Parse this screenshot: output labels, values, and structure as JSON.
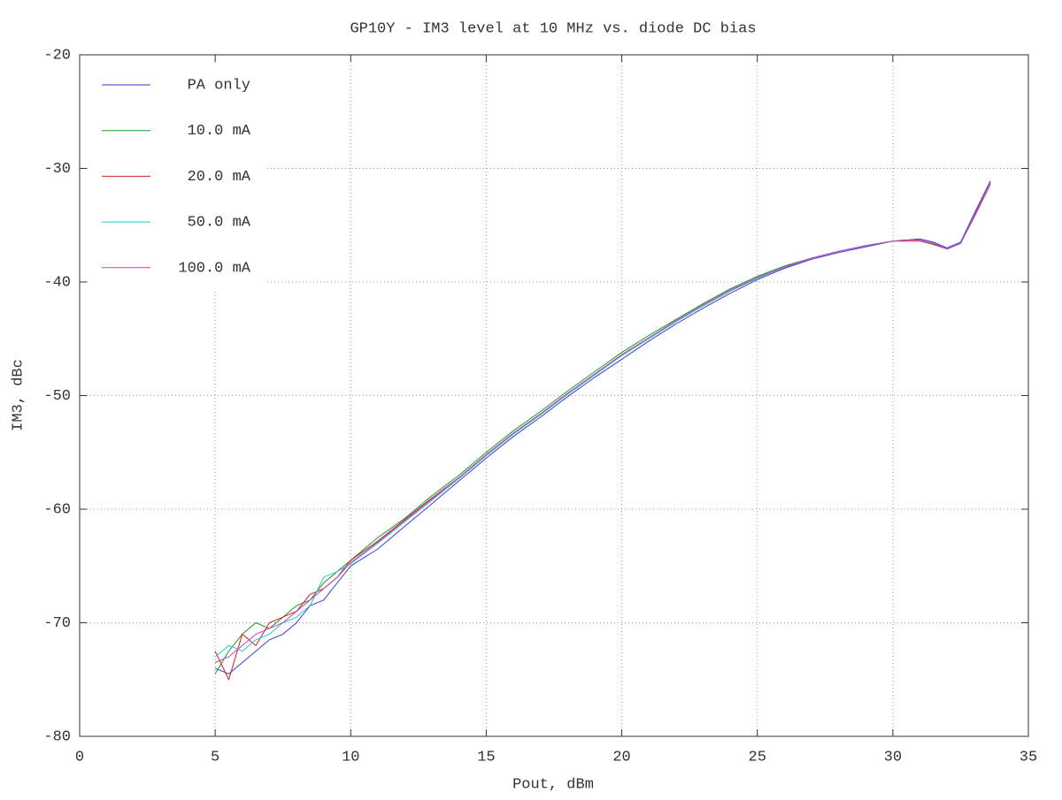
{
  "chart_data": {
    "type": "line",
    "title": "GP10Y - IM3 level at 10 MHz vs. diode DC bias",
    "x_label": "Pout, dBm",
    "y_label": "IM3, dBc",
    "xlim": [
      0,
      35
    ],
    "xticks": [
      0,
      5,
      10,
      15,
      20,
      25,
      30,
      35
    ],
    "ylim": [
      -80,
      -20
    ],
    "yticks": [
      -80,
      -70,
      -60,
      -50,
      -40,
      -30,
      -20
    ],
    "grid": true,
    "legend": "top-left",
    "x": [
      5,
      5.5,
      6,
      6.5,
      7,
      7.5,
      8,
      8.5,
      9,
      9.5,
      10,
      11,
      12,
      13,
      14,
      15,
      16,
      17,
      18,
      19,
      20,
      21,
      22,
      23,
      24,
      25,
      26,
      27,
      28,
      29,
      30,
      30.5,
      31,
      31.5,
      32,
      32.5,
      33,
      33.6
    ],
    "series": [
      {
        "name": "PA only",
        "color": "#3b3bd0",
        "values": [
          -74,
          -74.5,
          -73.5,
          -72.5,
          -71.5,
          -71,
          -70,
          -68.5,
          -68,
          -66.5,
          -65,
          -63.5,
          -61.5,
          -59.5,
          -57.5,
          -55.5,
          -53.6,
          -51.9,
          -50.1,
          -48.4,
          -46.8,
          -45.2,
          -43.7,
          -42.3,
          -41,
          -39.8,
          -38.8,
          -38,
          -37.4,
          -36.9,
          -36.4,
          -36.3,
          -36.2,
          -36.5,
          -37,
          -36.5,
          -34,
          -31.1
        ]
      },
      {
        "name": "10.0 mA",
        "color": "#1f9a1f",
        "values": [
          -74.5,
          -72.5,
          -71,
          -70,
          -70.5,
          -69.5,
          -68.5,
          -68,
          -66.5,
          -65.5,
          -64.5,
          -62.5,
          -60.8,
          -58.8,
          -57,
          -55,
          -53.1,
          -51.4,
          -49.6,
          -47.9,
          -46.2,
          -44.7,
          -43.3,
          -41.9,
          -40.6,
          -39.5,
          -38.6,
          -37.9,
          -37.3,
          -36.8,
          -36.4,
          -36.3,
          -36.3,
          -36.6,
          -37.1,
          -36.6,
          -34.2,
          -31.3
        ]
      },
      {
        "name": "20.0 mA",
        "color": "#d02020",
        "values": [
          -72.5,
          -75,
          -71,
          -72,
          -70,
          -69.5,
          -69,
          -67.5,
          -67,
          -66,
          -64.5,
          -62.8,
          -60.9,
          -59,
          -57.2,
          -55.2,
          -53.3,
          -51.6,
          -49.8,
          -48.1,
          -46.4,
          -44.9,
          -43.5,
          -42.1,
          -40.8,
          -39.6,
          -38.7,
          -37.9,
          -37.3,
          -36.8,
          -36.4,
          -36.4,
          -36.4,
          -36.7,
          -37.1,
          -36.6,
          -34.3,
          -31.4
        ]
      },
      {
        "name": "50.0 mA",
        "color": "#20c8c8",
        "values": [
          -73,
          -72,
          -72.5,
          -71.5,
          -71,
          -70,
          -69.5,
          -68.5,
          -66,
          -65.5,
          -64.8,
          -63,
          -61.1,
          -59.2,
          -57.3,
          -55.3,
          -53.4,
          -51.7,
          -49.9,
          -48.2,
          -46.5,
          -45,
          -43.5,
          -42.1,
          -40.8,
          -39.7,
          -38.7,
          -37.9,
          -37.3,
          -36.8,
          -36.4,
          -36.3,
          -36.3,
          -36.6,
          -37.1,
          -36.6,
          -34.2,
          -31.3
        ]
      },
      {
        "name": "100.0 mA",
        "color": "#c840c8",
        "values": [
          -73.5,
          -73,
          -72,
          -71,
          -70.5,
          -70,
          -69,
          -68,
          -67,
          -66,
          -64.7,
          -62.9,
          -61,
          -59.1,
          -57.2,
          -55.2,
          -53.3,
          -51.6,
          -49.8,
          -48.1,
          -46.4,
          -44.9,
          -43.4,
          -42,
          -40.7,
          -39.6,
          -38.7,
          -37.9,
          -37.3,
          -36.8,
          -36.4,
          -36.3,
          -36.3,
          -36.6,
          -37.1,
          -36.6,
          -34.2,
          -31.2
        ]
      }
    ]
  }
}
